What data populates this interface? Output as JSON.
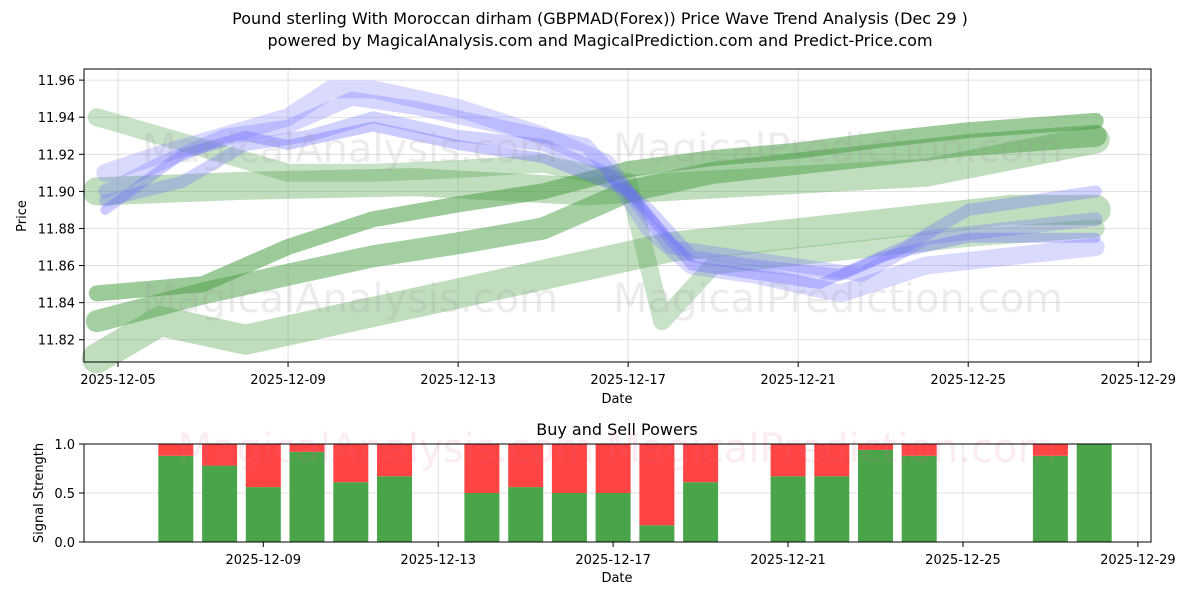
{
  "title_line1": "Pound sterling With Moroccan dirham (GBPMAD(Forex)) Price Wave Trend Analysis (Dec 29 )",
  "title_line2": "powered by MagicalAnalysis.com and MagicalPrediction.com and Predict-Price.com",
  "watermarks": {
    "left": "MagicalAnalysis.com",
    "right": "MagicalPrediction.com",
    "bottom": "MagicalAnalysis.com    MagicalPrediction.com"
  },
  "colors": {
    "green_band": "#4a9f45",
    "green_light": "#8cc98a",
    "blue_band": "#6a6aff",
    "buy": "#4aa54a",
    "sell": "#ff4444",
    "grid": "#d9d9d9"
  },
  "chart_data": [
    {
      "type": "line",
      "title": "",
      "xlabel": "Date",
      "ylabel": "Price",
      "ylim": [
        11.808,
        11.966
      ],
      "x_ticks": [
        "2025-12-05",
        "2025-12-09",
        "2025-12-13",
        "2025-12-17",
        "2025-12-21",
        "2025-12-25",
        "2025-12-29"
      ],
      "y_ticks": [
        "11.82",
        "11.84",
        "11.86",
        "11.88",
        "11.90",
        "11.92",
        "11.94",
        "11.96"
      ],
      "grid": true,
      "x_days_range": [
        4.2,
        29.3
      ],
      "series": [
        {
          "name": "green-band-1",
          "color": "green",
          "width": 22,
          "opacity": 0.5,
          "x": [
            4.5,
            7,
            9,
            11,
            13,
            15,
            17,
            19,
            21,
            23,
            25,
            28
          ],
          "y": [
            11.83,
            11.845,
            11.855,
            11.865,
            11.872,
            11.88,
            11.9,
            11.91,
            11.915,
            11.92,
            11.925,
            11.93
          ]
        },
        {
          "name": "green-band-2",
          "color": "green",
          "width": 30,
          "opacity": 0.35,
          "x": [
            4.5,
            6,
            8,
            10,
            12,
            14,
            16,
            18,
            20,
            22,
            24,
            26,
            28
          ],
          "y": [
            11.81,
            11.83,
            11.82,
            11.83,
            11.84,
            11.85,
            11.86,
            11.87,
            11.875,
            11.88,
            11.885,
            11.89,
            11.89
          ]
        },
        {
          "name": "green-band-3",
          "color": "green",
          "width": 28,
          "opacity": 0.35,
          "x": [
            4.5,
            8,
            12,
            16,
            20,
            24,
            28
          ],
          "y": [
            11.9,
            11.903,
            11.905,
            11.9,
            11.905,
            11.91,
            11.928
          ]
        },
        {
          "name": "green-band-4",
          "color": "green",
          "width": 16,
          "opacity": 0.55,
          "x": [
            4.5,
            7,
            9,
            11,
            13,
            15,
            17,
            19,
            21,
            23,
            25,
            28
          ],
          "y": [
            11.845,
            11.85,
            11.87,
            11.885,
            11.893,
            11.9,
            11.912,
            11.918,
            11.922,
            11.928,
            11.933,
            11.938
          ]
        },
        {
          "name": "green-band-5",
          "color": "green",
          "width": 18,
          "opacity": 0.3,
          "x": [
            4.5,
            6,
            7.5,
            9,
            11,
            13,
            15,
            17,
            17.8,
            19,
            21,
            23,
            25,
            28
          ],
          "y": [
            11.94,
            11.93,
            11.92,
            11.91,
            11.91,
            11.912,
            11.915,
            11.905,
            11.83,
            11.86,
            11.865,
            11.87,
            11.875,
            11.88
          ]
        },
        {
          "name": "blue-band-1",
          "color": "blue",
          "width": 18,
          "opacity": 0.25,
          "x": [
            4.7,
            6,
            7.5,
            9,
            10,
            11,
            13,
            15,
            16.5,
            17.5,
            18.5,
            20,
            22,
            24,
            28
          ],
          "y": [
            11.91,
            11.92,
            11.93,
            11.94,
            11.955,
            11.955,
            11.945,
            11.93,
            11.915,
            11.88,
            11.86,
            11.855,
            11.845,
            11.86,
            11.87
          ]
        },
        {
          "name": "blue-band-2",
          "color": "blue",
          "width": 14,
          "opacity": 0.28,
          "x": [
            4.7,
            6,
            7.5,
            9,
            10.5,
            12,
            14,
            16,
            17,
            18,
            19.5,
            21,
            22.5,
            24,
            28
          ],
          "y": [
            11.9,
            11.915,
            11.93,
            11.935,
            11.95,
            11.945,
            11.935,
            11.925,
            11.9,
            11.87,
            11.865,
            11.86,
            11.855,
            11.875,
            11.885
          ]
        },
        {
          "name": "blue-band-3",
          "color": "blue",
          "width": 12,
          "opacity": 0.3,
          "x": [
            4.7,
            6.5,
            8,
            9.5,
            11,
            13,
            15,
            16.5,
            17.5,
            18.5,
            20,
            22,
            23.5,
            25,
            28
          ],
          "y": [
            11.895,
            11.905,
            11.925,
            11.93,
            11.94,
            11.93,
            11.925,
            11.91,
            11.89,
            11.865,
            11.86,
            11.855,
            11.87,
            11.89,
            11.9
          ]
        },
        {
          "name": "blue-band-4",
          "color": "blue",
          "width": 10,
          "opacity": 0.35,
          "x": [
            4.7,
            6.5,
            8,
            9,
            11,
            13,
            15,
            17,
            18.5,
            20,
            21.5,
            23,
            25,
            28
          ],
          "y": [
            11.89,
            11.92,
            11.93,
            11.925,
            11.935,
            11.925,
            11.918,
            11.9,
            11.86,
            11.855,
            11.85,
            11.865,
            11.875,
            11.875
          ]
        }
      ]
    },
    {
      "type": "bar",
      "title": "Buy and Sell Powers",
      "xlabel": "Date",
      "ylabel": "Signal Strength",
      "ylim": [
        0.0,
        1.0
      ],
      "y_ticks": [
        "0.0",
        "0.5",
        "1.0"
      ],
      "x_ticks": [
        "2025-12-09",
        "2025-12-13",
        "2025-12-17",
        "2025-12-21",
        "2025-12-25",
        "2025-12-29"
      ],
      "x_days_range": [
        4.9,
        29.3
      ],
      "categories": [
        7,
        8,
        9,
        10,
        11,
        12,
        14,
        15,
        16,
        17,
        18,
        19,
        21,
        22,
        23,
        24,
        27,
        28
      ],
      "series": [
        {
          "name": "Buy",
          "values": [
            0.88,
            0.78,
            0.56,
            0.92,
            0.61,
            0.67,
            0.5,
            0.56,
            0.5,
            0.5,
            0.17,
            0.61,
            0.67,
            0.67,
            0.94,
            0.88,
            0.88,
            1.0
          ]
        },
        {
          "name": "Sell",
          "values": [
            0.12,
            0.22,
            0.44,
            0.08,
            0.39,
            0.33,
            0.5,
            0.44,
            0.5,
            0.5,
            0.83,
            0.39,
            0.33,
            0.33,
            0.06,
            0.12,
            0.12,
            0.0
          ]
        }
      ]
    }
  ]
}
